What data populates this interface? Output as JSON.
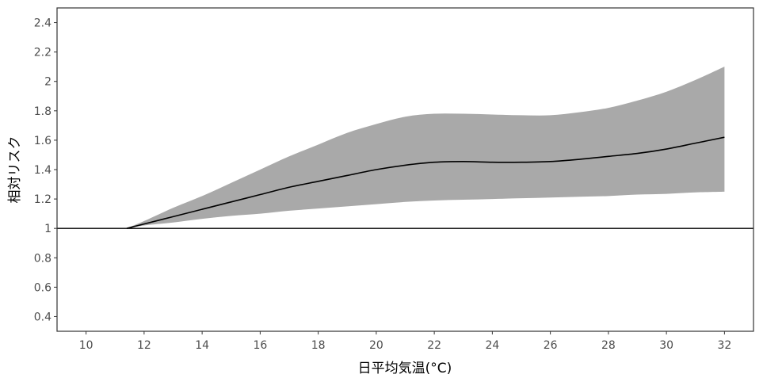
{
  "chart_data": {
    "type": "line",
    "title": "",
    "xlabel": "日平均気温(°C)",
    "ylabel": "相対リスク",
    "xlim": [
      9,
      33
    ],
    "ylim": [
      0.3,
      2.5
    ],
    "x_ticks": [
      10,
      12,
      14,
      16,
      18,
      20,
      22,
      24,
      26,
      28,
      30,
      32
    ],
    "y_ticks": [
      0.4,
      0.6,
      0.8,
      1,
      1.2,
      1.4,
      1.6,
      1.8,
      2,
      2.2,
      2.4
    ],
    "x_tick_labels": [
      "10",
      "12",
      "14",
      "16",
      "18",
      "20",
      "22",
      "24",
      "26",
      "28",
      "30",
      "32"
    ],
    "y_tick_labels": [
      "0.4",
      "0.6",
      "0.8",
      "1",
      "1.2",
      "1.4",
      "1.6",
      "1.8",
      "2",
      "2.2",
      "2.4"
    ],
    "reference_line": 1,
    "grid": false,
    "series": [
      {
        "x": [
          11.4,
          12,
          13,
          14,
          15,
          16,
          17,
          18,
          19,
          20,
          21,
          22,
          23,
          24,
          25,
          26,
          27,
          28,
          29,
          30,
          31,
          32
        ],
        "values": [
          1.0,
          1.03,
          1.08,
          1.13,
          1.18,
          1.23,
          1.28,
          1.32,
          1.36,
          1.4,
          1.43,
          1.45,
          1.455,
          1.45,
          1.45,
          1.455,
          1.47,
          1.49,
          1.51,
          1.54,
          1.58,
          1.62
        ],
        "lower": [
          1.0,
          1.02,
          1.04,
          1.065,
          1.085,
          1.1,
          1.12,
          1.135,
          1.15,
          1.165,
          1.18,
          1.19,
          1.195,
          1.2,
          1.205,
          1.21,
          1.215,
          1.22,
          1.23,
          1.235,
          1.245,
          1.25
        ],
        "upper": [
          1.0,
          1.05,
          1.14,
          1.22,
          1.31,
          1.4,
          1.49,
          1.57,
          1.65,
          1.71,
          1.76,
          1.78,
          1.78,
          1.775,
          1.77,
          1.77,
          1.79,
          1.82,
          1.87,
          1.93,
          2.01,
          2.1
        ]
      }
    ],
    "colors": {
      "line": "#000000",
      "band": "#a9a9a9",
      "reference": "#000000",
      "panel_border": "#333333"
    }
  }
}
